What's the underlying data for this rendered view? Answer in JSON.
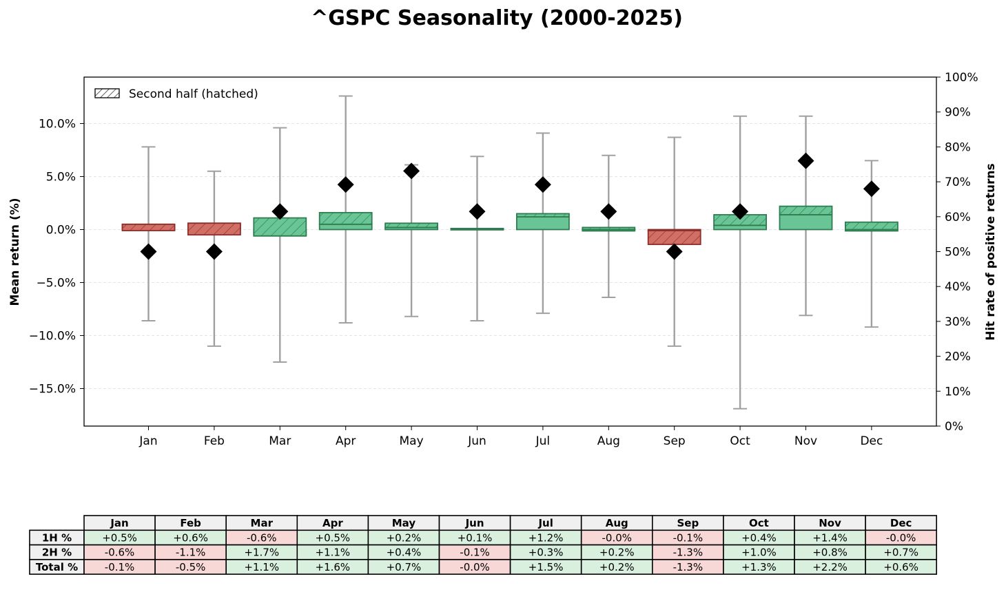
{
  "chart_data": {
    "type": "bar",
    "title": "^GSPC Seasonality (2000-2025)",
    "xlabel": "",
    "ylabel": "Mean return (%)",
    "y2label": "Hit rate of positive returns",
    "ylim": [
      -18.5,
      14.4
    ],
    "y2lim": [
      0,
      100
    ],
    "yticks": [
      10,
      5,
      0,
      -5,
      -10,
      -15
    ],
    "ytick_labels": [
      "10.0%",
      "5.0%",
      "0.0%",
      "−5.0%",
      "−10.0%",
      "−15.0%"
    ],
    "y2ticks": [
      100,
      90,
      80,
      70,
      60,
      50,
      40,
      30,
      20,
      10,
      0
    ],
    "y2tick_labels": [
      "100%",
      "90%",
      "80%",
      "70%",
      "60%",
      "50%",
      "40%",
      "30%",
      "20%",
      "10%",
      "0%"
    ],
    "grid": "horizontal dashed",
    "legend": {
      "label": "Second half (hatched)",
      "placement": "top-left"
    },
    "categories": [
      "Jan",
      "Feb",
      "Mar",
      "Apr",
      "May",
      "Jun",
      "Jul",
      "Aug",
      "Sep",
      "Oct",
      "Nov",
      "Dec"
    ],
    "series": [
      {
        "name": "First half mean (%)",
        "values": [
          0.5,
          0.6,
          -0.6,
          0.5,
          0.2,
          0.1,
          1.2,
          -0.0,
          -0.1,
          0.4,
          1.4,
          -0.0
        ]
      },
      {
        "name": "Second half mean (%)",
        "values": [
          -0.6,
          -1.1,
          1.7,
          1.1,
          0.4,
          -0.1,
          0.3,
          0.2,
          -1.3,
          1.0,
          0.8,
          0.7
        ]
      },
      {
        "name": "Total mean (%)",
        "values": [
          -0.1,
          -0.5,
          1.1,
          1.6,
          0.7,
          -0.0,
          1.5,
          0.2,
          -1.3,
          1.3,
          2.2,
          0.6
        ]
      },
      {
        "name": "Range low (%)",
        "values": [
          -8.6,
          -11.0,
          -12.5,
          -8.8,
          -8.2,
          -8.6,
          -7.9,
          -6.4,
          -11.0,
          -16.9,
          -8.1,
          -9.2
        ]
      },
      {
        "name": "Range high (%)",
        "values": [
          7.8,
          5.5,
          9.6,
          12.6,
          6.1,
          6.9,
          9.1,
          7.0,
          8.7,
          10.7,
          10.7,
          6.5
        ]
      },
      {
        "name": "Hit rate (%)",
        "values": [
          50,
          50,
          61.5,
          69.2,
          73.1,
          61.5,
          69.2,
          61.5,
          50,
          61.5,
          76.0,
          68.0
        ]
      }
    ],
    "table": {
      "columns": [
        "Jan",
        "Feb",
        "Mar",
        "Apr",
        "May",
        "Jun",
        "Jul",
        "Aug",
        "Sep",
        "Oct",
        "Nov",
        "Dec"
      ],
      "rows": [
        {
          "label": "1H %",
          "cells": [
            "+0.5%",
            "+0.6%",
            "-0.6%",
            "+0.5%",
            "+0.2%",
            "+0.1%",
            "+1.2%",
            "-0.0%",
            "-0.1%",
            "+0.4%",
            "+1.4%",
            "-0.0%"
          ],
          "positive": [
            true,
            true,
            false,
            true,
            true,
            true,
            true,
            false,
            false,
            true,
            true,
            false
          ]
        },
        {
          "label": "2H %",
          "cells": [
            "-0.6%",
            "-1.1%",
            "+1.7%",
            "+1.1%",
            "+0.4%",
            "-0.1%",
            "+0.3%",
            "+0.2%",
            "-1.3%",
            "+1.0%",
            "+0.8%",
            "+0.7%"
          ],
          "positive": [
            false,
            false,
            true,
            true,
            true,
            false,
            true,
            true,
            false,
            true,
            true,
            true
          ]
        },
        {
          "label": "Total %",
          "cells": [
            "-0.1%",
            "-0.5%",
            "+1.1%",
            "+1.6%",
            "+0.7%",
            "-0.0%",
            "+1.5%",
            "+0.2%",
            "-1.3%",
            "+1.3%",
            "+2.2%",
            "+0.6%"
          ],
          "positive": [
            false,
            false,
            true,
            true,
            true,
            false,
            true,
            true,
            false,
            true,
            true,
            true
          ]
        }
      ]
    },
    "colors": {
      "positive_bar": "#69c596",
      "positive_edge": "#2e7d4f",
      "negative_bar": "#d16f66",
      "negative_edge": "#8c2f2a",
      "whisker": "#a0a0a0",
      "marker": "#000000",
      "cell_positive": "#d9f0df",
      "cell_negative": "#f7d8d6",
      "cell_header": "#f0f0f0"
    }
  }
}
